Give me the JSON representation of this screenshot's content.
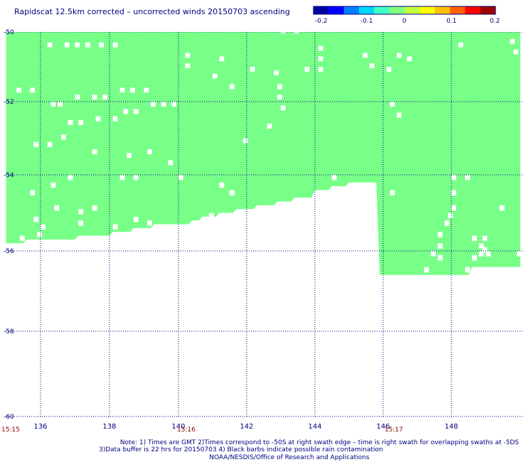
{
  "chart_data": {
    "type": "heatmap",
    "title": "Rapidscat 12.5km corrected – uncorrected winds 20150703 ascending",
    "xlabel": "",
    "ylabel": "",
    "xlim": [
      135.0,
      150.0
    ],
    "ylim": [
      -60.0,
      -50.0
    ],
    "x_ticks": [
      "136",
      "138",
      "140",
      "142",
      "144",
      "146",
      "148"
    ],
    "x_tick_values": [
      136,
      138,
      140,
      142,
      144,
      146,
      148
    ],
    "y_ticks": [
      "-50",
      "-52",
      "-54",
      "-56",
      "-58",
      "-60"
    ],
    "y_tick_values": [
      -50,
      -52,
      -54,
      -56,
      -58,
      -60
    ],
    "grid": true,
    "colorbar": {
      "ticks": [
        "-0.2",
        "-0.1",
        "0",
        "0.1",
        "0.2"
      ],
      "tick_values": [
        -0.2,
        -0.1,
        0,
        0.1,
        0.2
      ],
      "range": [
        -0.2,
        0.2
      ],
      "colors": [
        "#0000a0",
        "#0000ff",
        "#0080ff",
        "#00d8ff",
        "#40ffc0",
        "#80ff80",
        "#c0ff40",
        "#ffff00",
        "#ffc000",
        "#ff6000",
        "#ff0000",
        "#a00000"
      ]
    },
    "field_color": "#78ff88",
    "field_value": 0.0,
    "time_labels": [
      {
        "text": "15:15",
        "lon": 134.9
      },
      {
        "text": "15:16",
        "lon": 140.2
      },
      {
        "text": "15:17",
        "lon": 146.3
      }
    ],
    "swath_bottom": [
      [
        135.0,
        -55.8
      ],
      [
        135.5,
        -55.8
      ],
      [
        135.6,
        -55.7
      ],
      [
        137.0,
        -55.7
      ],
      [
        137.1,
        -55.6
      ],
      [
        138.0,
        -55.6
      ],
      [
        138.1,
        -55.5
      ],
      [
        138.6,
        -55.5
      ],
      [
        138.7,
        -55.4
      ],
      [
        139.2,
        -55.4
      ],
      [
        139.3,
        -55.3
      ],
      [
        140.3,
        -55.3
      ],
      [
        140.4,
        -55.2
      ],
      [
        140.6,
        -55.2
      ],
      [
        140.7,
        -55.1
      ],
      [
        141.1,
        -55.1
      ],
      [
        141.2,
        -55.0
      ],
      [
        141.6,
        -55.0
      ],
      [
        141.7,
        -54.9
      ],
      [
        142.2,
        -54.9
      ],
      [
        142.3,
        -54.8
      ],
      [
        142.8,
        -54.8
      ],
      [
        142.9,
        -54.7
      ],
      [
        143.3,
        -54.7
      ],
      [
        143.4,
        -54.6
      ],
      [
        143.9,
        -54.6
      ],
      [
        144.0,
        -54.4
      ],
      [
        144.4,
        -54.4
      ],
      [
        144.5,
        -54.3
      ],
      [
        144.9,
        -54.3
      ],
      [
        145.0,
        -54.2
      ],
      [
        145.8,
        -54.2
      ],
      [
        145.9,
        -56.6
      ],
      [
        148.5,
        -56.6
      ],
      [
        148.6,
        -56.4
      ],
      [
        150.0,
        -56.4
      ]
    ],
    "cell_size_deg": 0.2,
    "missing_cells": [
      [
        136.2,
        -50.3
      ],
      [
        136.7,
        -50.3
      ],
      [
        137.0,
        -50.3
      ],
      [
        137.3,
        -50.3
      ],
      [
        137.7,
        -50.3
      ],
      [
        138.1,
        -50.3
      ],
      [
        135.3,
        -51.6
      ],
      [
        135.7,
        -51.6
      ],
      [
        136.3,
        -52.0
      ],
      [
        136.5,
        -52.0
      ],
      [
        137.0,
        -51.8
      ],
      [
        137.5,
        -51.8
      ],
      [
        137.8,
        -51.8
      ],
      [
        138.3,
        -51.6
      ],
      [
        138.6,
        -51.6
      ],
      [
        139.0,
        -51.6
      ],
      [
        138.4,
        -52.2
      ],
      [
        138.7,
        -52.2
      ],
      [
        139.2,
        -52.0
      ],
      [
        139.5,
        -52.0
      ],
      [
        139.8,
        -52.0
      ],
      [
        136.8,
        -52.5
      ],
      [
        137.1,
        -52.5
      ],
      [
        137.6,
        -52.4
      ],
      [
        138.1,
        -52.4
      ],
      [
        136.6,
        -52.9
      ],
      [
        136.2,
        -53.1
      ],
      [
        135.8,
        -53.1
      ],
      [
        137.5,
        -53.3
      ],
      [
        138.5,
        -53.4
      ],
      [
        139.1,
        -53.3
      ],
      [
        139.7,
        -53.6
      ],
      [
        136.8,
        -54.0
      ],
      [
        138.3,
        -54.0
      ],
      [
        138.7,
        -54.0
      ],
      [
        140.0,
        -54.0
      ],
      [
        135.7,
        -54.4
      ],
      [
        136.3,
        -54.2
      ],
      [
        136.4,
        -54.8
      ],
      [
        137.1,
        -54.9
      ],
      [
        137.5,
        -54.8
      ],
      [
        137.1,
        -55.2
      ],
      [
        136.0,
        -55.3
      ],
      [
        135.9,
        -55.5
      ],
      [
        135.4,
        -55.6
      ],
      [
        135.8,
        -55.1
      ],
      [
        138.1,
        -55.3
      ],
      [
        138.7,
        -55.1
      ],
      [
        139.1,
        -55.2
      ],
      [
        139.4,
        -55.3
      ],
      [
        140.2,
        -50.6
      ],
      [
        140.2,
        -50.9
      ],
      [
        141.2,
        -50.7
      ],
      [
        141.0,
        -51.2
      ],
      [
        141.5,
        -51.5
      ],
      [
        142.1,
        -51.0
      ],
      [
        142.8,
        -51.1
      ],
      [
        142.9,
        -51.5
      ],
      [
        142.9,
        -51.8
      ],
      [
        143.0,
        -52.1
      ],
      [
        142.6,
        -52.6
      ],
      [
        141.9,
        -53.0
      ],
      [
        141.2,
        -54.2
      ],
      [
        141.5,
        -54.4
      ],
      [
        140.9,
        -55.0
      ],
      [
        143.0,
        -49.9
      ],
      [
        143.4,
        -49.9
      ],
      [
        144.1,
        -50.4
      ],
      [
        144.1,
        -50.7
      ],
      [
        143.7,
        -51.0
      ],
      [
        144.1,
        -51.0
      ],
      [
        144.5,
        -54.0
      ],
      [
        144.4,
        -54.4
      ],
      [
        145.4,
        -50.6
      ],
      [
        145.6,
        -50.9
      ],
      [
        146.1,
        -51.0
      ],
      [
        146.4,
        -50.6
      ],
      [
        146.7,
        -50.7
      ],
      [
        146.2,
        -52.0
      ],
      [
        146.4,
        -52.3
      ],
      [
        146.2,
        -54.4
      ],
      [
        148.2,
        -50.3
      ],
      [
        148.0,
        -54.0
      ],
      [
        148.4,
        -54.0
      ],
      [
        148.0,
        -54.4
      ],
      [
        148.0,
        -54.8
      ],
      [
        147.9,
        -55.0
      ],
      [
        147.8,
        -55.2
      ],
      [
        147.6,
        -55.5
      ],
      [
        147.6,
        -55.8
      ],
      [
        147.4,
        -56.0
      ],
      [
        147.6,
        -56.1
      ],
      [
        147.2,
        -56.4
      ],
      [
        148.4,
        -56.4
      ],
      [
        148.6,
        -56.1
      ],
      [
        148.8,
        -55.8
      ],
      [
        148.9,
        -55.9
      ],
      [
        148.8,
        -56.0
      ],
      [
        149.0,
        -56.0
      ],
      [
        148.9,
        -55.6
      ],
      [
        148.6,
        -55.6
      ],
      [
        149.4,
        -54.8
      ],
      [
        149.7,
        -50.2
      ],
      [
        149.8,
        -50.5
      ],
      [
        149.9,
        -56.0
      ]
    ]
  },
  "note": {
    "line1": "Note: 1) Times are GMT 2)Times correspond to -50S at right swath edge – time is right swath for overlapping swaths at -5DS",
    "line2": "3)Data buffer is 22 hrs for 20150703 4) Black barbs indicate possible rain contamination",
    "line3": "NOAA/NESDIS/Office of Research and Applications"
  }
}
